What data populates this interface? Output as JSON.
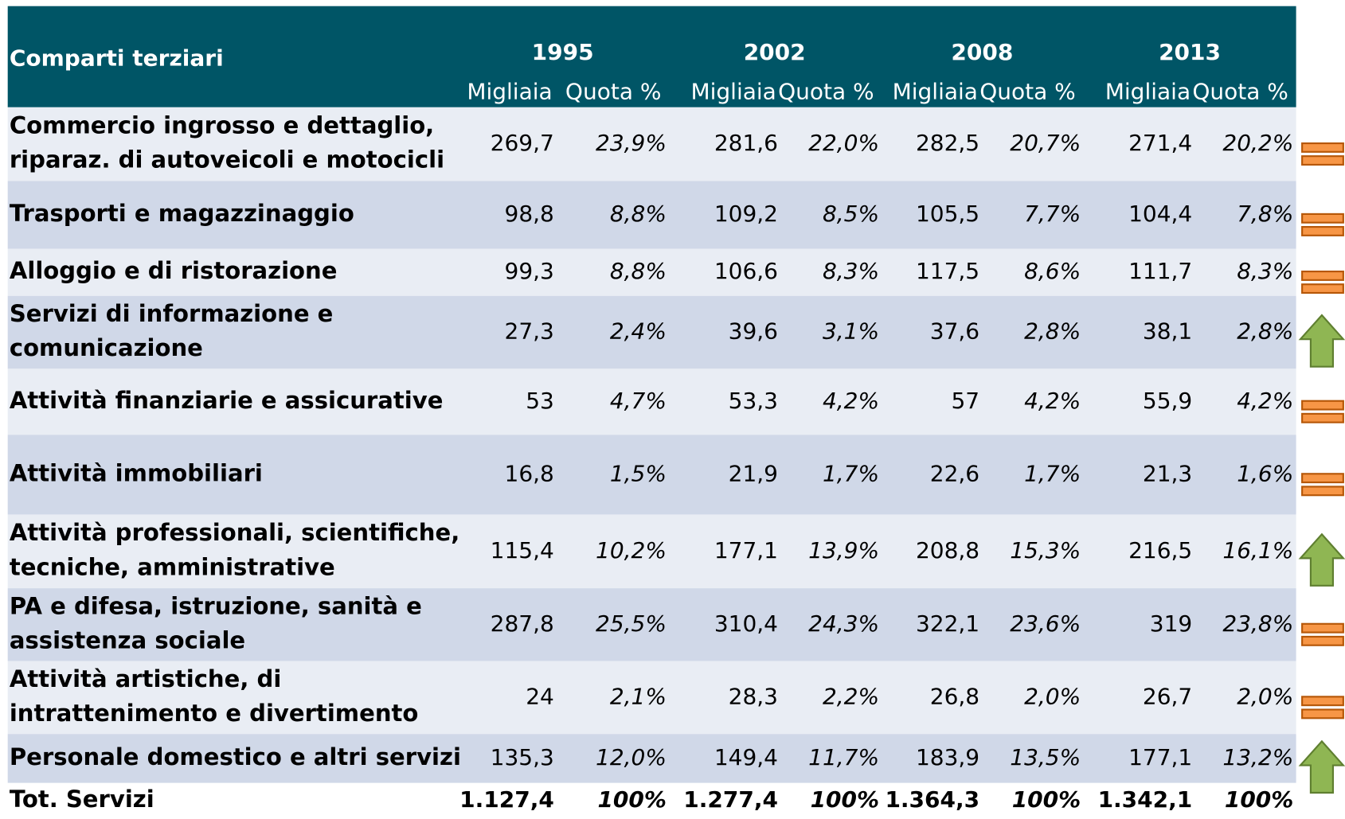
{
  "table": {
    "header": {
      "title": "Comparti terziari",
      "years": [
        "1995",
        "2002",
        "2008",
        "2013"
      ],
      "subheaders": [
        "Migliaia",
        "Quota %"
      ]
    },
    "rows": [
      {
        "label": [
          "Commercio ingrosso e dettaglio,",
          "riparaz. di autoveicoli e motocicli"
        ],
        "cells": [
          "269,7",
          "23,9%",
          "281,6",
          "22,0%",
          "282,5",
          "20,7%",
          "271,4",
          "20,2%"
        ],
        "trend": "equal"
      },
      {
        "label": [
          "Trasporti e magazzinaggio"
        ],
        "cells": [
          "98,8",
          "8,8%",
          "109,2",
          "8,5%",
          "105,5",
          "7,7%",
          "104,4",
          "7,8%"
        ],
        "trend": "equal"
      },
      {
        "label": [
          "Alloggio e di ristorazione"
        ],
        "cells": [
          "99,3",
          "8,8%",
          "106,6",
          "8,3%",
          "117,5",
          "8,6%",
          "111,7",
          "8,3%"
        ],
        "trend": "equal"
      },
      {
        "label": [
          "Servizi di informazione e",
          "comunicazione"
        ],
        "cells": [
          "27,3",
          "2,4%",
          "39,6",
          "3,1%",
          "37,6",
          "2,8%",
          "38,1",
          "2,8%"
        ],
        "trend": "up"
      },
      {
        "label": [
          "Attività finanziarie e assicurative"
        ],
        "cells": [
          "53",
          "4,7%",
          "53,3",
          "4,2%",
          "57",
          "4,2%",
          "55,9",
          "4,2%"
        ],
        "trend": "equal"
      },
      {
        "label": [
          "Attività immobiliari"
        ],
        "cells": [
          "16,8",
          "1,5%",
          "21,9",
          "1,7%",
          "22,6",
          "1,7%",
          "21,3",
          "1,6%"
        ],
        "trend": "equal"
      },
      {
        "label": [
          "Attività professionali, scientifiche,",
          "tecniche, amministrative"
        ],
        "cells": [
          "115,4",
          "10,2%",
          "177,1",
          "13,9%",
          "208,8",
          "15,3%",
          "216,5",
          "16,1%"
        ],
        "trend": "up"
      },
      {
        "label": [
          "PA e difesa, istruzione, sanità e",
          "assistenza sociale"
        ],
        "cells": [
          "287,8",
          "25,5%",
          "310,4",
          "24,3%",
          "322,1",
          "23,6%",
          "319",
          "23,8%"
        ],
        "trend": "equal"
      },
      {
        "label": [
          " Attività artistiche, di",
          "intrattenimento e divertimento"
        ],
        "cells": [
          "24",
          "2,1%",
          "28,3",
          "2,2%",
          "26,8",
          "2,0%",
          "26,7",
          "2,0%"
        ],
        "trend": "equal"
      },
      {
        "label": [
          "Personale domestico e altri servizi"
        ],
        "cells": [
          "135,3",
          "12,0%",
          "149,4",
          "11,7%",
          "183,9",
          "13,5%",
          "177,1",
          "13,2%"
        ],
        "trend": "up"
      }
    ],
    "total": {
      "label": [
        "Tot. Servizi"
      ],
      "cells": [
        "1.127,4",
        "100%",
        "1.277,4",
        "100%",
        "1.364,3",
        "100%",
        "1.342,1",
        "100%"
      ]
    }
  }
}
